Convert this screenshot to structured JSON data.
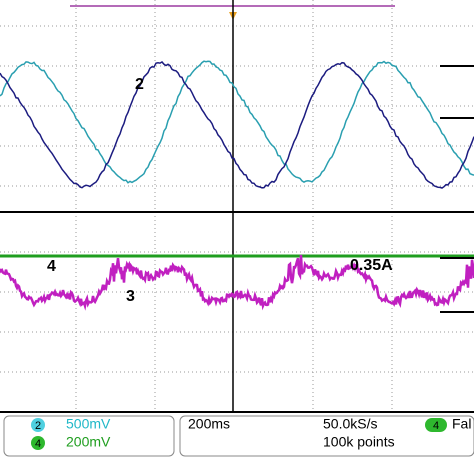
{
  "labels": {
    "ch2_trace": "2",
    "ch4_trace": "4",
    "current": "0.35A",
    "ch3_trace": "3"
  },
  "status": {
    "ch2_badge": "2",
    "ch2_scale": "500mV",
    "ch4_badge": "4",
    "ch4_scale": "200mV",
    "timebase": "200ms",
    "sample_rate": "50.0kS/s",
    "record_length": "100k points",
    "trigger_badge": "4",
    "trigger_slope": "Fal"
  }
}
